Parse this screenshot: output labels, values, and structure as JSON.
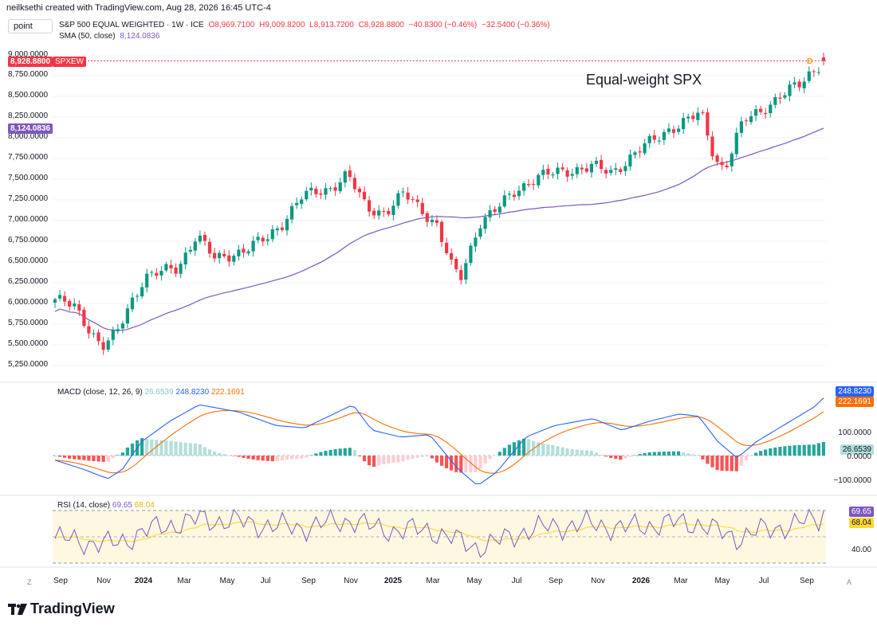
{
  "header": {
    "credit": "neilksethi created with TradingView.com, Aug 28, 2026 16:45 UTC-4",
    "symbol_input": "point",
    "title": "S&P 500 EQUAL WEIGHTED · 1W · ICE",
    "open": "O8,969.7100",
    "high": "H9,009.8200",
    "low": "L8,913.7200",
    "close": "C8,928.8800",
    "change": "−40.8300 (−0.46%)",
    "change2": "−32.5400 (−0.36%)",
    "sma_label": "SMA (50, close)",
    "sma_value": "8,124.0836"
  },
  "annotation": "Equal-weight SPX",
  "price_axis": {
    "labels": [
      "9,000.0000",
      "8,750.0000",
      "8,500.0000",
      "8,250.0000",
      "8,000.0000",
      "7,750.0000",
      "7,500.0000",
      "7,250.0000",
      "7,000.0000",
      "6,750.0000",
      "6,500.0000",
      "6,250.0000",
      "6,000.0000",
      "5,750.0000",
      "5,500.0000",
      "5,250.0000"
    ],
    "last_price_tag": "8,928.8800",
    "symbol_tag": "SPXEW",
    "sma_tag": "8,124.0836",
    "d_marker": "D"
  },
  "x_axis": {
    "labels": [
      {
        "text": "Sep",
        "bold": false
      },
      {
        "text": "Nov",
        "bold": false
      },
      {
        "text": "2024",
        "bold": true
      },
      {
        "text": "Mar",
        "bold": false
      },
      {
        "text": "May",
        "bold": false
      },
      {
        "text": "Jul",
        "bold": false
      },
      {
        "text": "Sep",
        "bold": false
      },
      {
        "text": "Nov",
        "bold": false
      },
      {
        "text": "2025",
        "bold": true
      },
      {
        "text": "Mar",
        "bold": false
      },
      {
        "text": "May",
        "bold": false
      },
      {
        "text": "Jul",
        "bold": false
      },
      {
        "text": "Sep",
        "bold": false
      },
      {
        "text": "Nov",
        "bold": false
      },
      {
        "text": "2026",
        "bold": true
      },
      {
        "text": "Mar",
        "bold": false
      },
      {
        "text": "May",
        "bold": false
      },
      {
        "text": "Jul",
        "bold": false
      },
      {
        "text": "Sep",
        "bold": false
      }
    ],
    "left_corner": "Z",
    "right_corner": "A"
  },
  "macd": {
    "label": "MACD (close, 12, 26, 9)",
    "hist_value": "26.6539",
    "macd_value": "248.8230",
    "signal_value": "222.1691",
    "axis_labels": [
      "100.0000",
      "0.0000",
      "−100.0000"
    ]
  },
  "rsi": {
    "label": "RSI (14, close)",
    "rsi_value": "69.65",
    "sma_value": "68.04",
    "axis_labels": [
      "40.00"
    ]
  },
  "branding": "TradingView",
  "colors": {
    "up": "#089981",
    "down": "#f23645",
    "sma": "#7e57c2",
    "macd_line": "#2962ff",
    "signal_line": "#ff6d00",
    "hist_up": "#26a69a",
    "hist_up_light": "#b2dfdb",
    "hist_down": "#ff5252",
    "hist_down_light": "#ffcdd2",
    "rsi_line": "#7e57c2",
    "rsi_ma": "#fdd835"
  },
  "chart_data": {
    "type": "candlestick",
    "title": "S&P 500 EQUAL WEIGHTED · 1W · ICE",
    "ylim": [
      5100,
      9150
    ],
    "series": [
      {
        "name": "SPXEW",
        "interval": "1W"
      },
      {
        "name": "SMA (50, close)",
        "last": 8124.0836
      }
    ],
    "price_anchors": [
      {
        "x": "Aug 2023",
        "close": 6050
      },
      {
        "x": "Oct 2023",
        "close": 5500
      },
      {
        "x": "Jan 2024",
        "close": 6300
      },
      {
        "x": "Apr 2024",
        "close": 6800
      },
      {
        "x": "Jul 2024",
        "close": 6650
      },
      {
        "x": "Nov 2024",
        "close": 7550
      },
      {
        "x": "Jan 2025",
        "close": 7100
      },
      {
        "x": "Apr 2025",
        "close": 6200
      },
      {
        "x": "Jul 2025",
        "close": 7400
      },
      {
        "x": "Oct 2025",
        "close": 7650
      },
      {
        "x": "Jan 2026",
        "close": 8250
      },
      {
        "x": "Mar 2026",
        "close": 7650
      },
      {
        "x": "Jun 2026",
        "close": 8550
      },
      {
        "x": "Aug 2026",
        "close": 8928.88
      }
    ]
  }
}
